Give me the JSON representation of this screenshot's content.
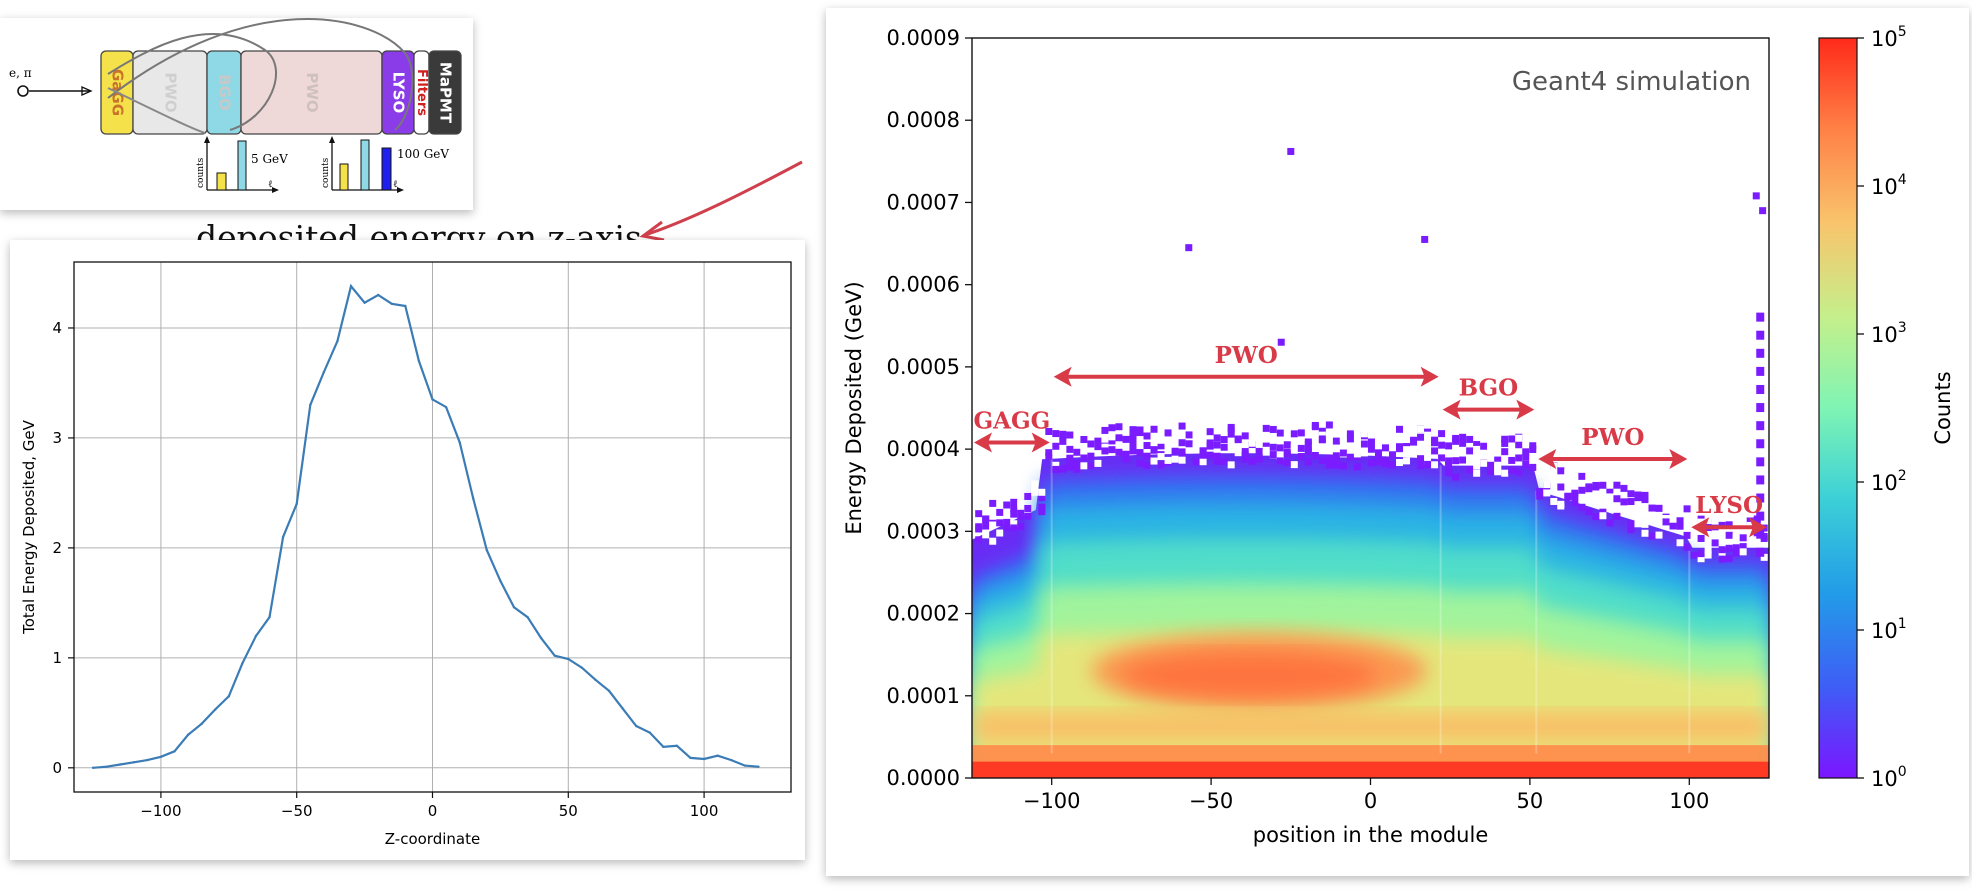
{
  "schematic": {
    "beam_label": "e, π",
    "blocks": [
      {
        "name": "gagg",
        "label": "GaGG",
        "color": "#f5e24a",
        "text_color": "#c9722a"
      },
      {
        "name": "pwo-1",
        "label": "PWO",
        "color": "#e8e8e8",
        "text_color": "#cfcfcf"
      },
      {
        "name": "bgo",
        "label": "BGO",
        "color": "#8fd8e6",
        "text_color": "#c8c8c8"
      },
      {
        "name": "pwo-2",
        "label": "PWO",
        "color": "#efd8d8",
        "text_color": "#cfc0c0"
      },
      {
        "name": "lyso",
        "label": "LYSO",
        "color": "#8a3ce8",
        "text_color": "#ffffff"
      },
      {
        "name": "filters",
        "label": "Filters",
        "color": "#ffffff",
        "text_color": "#d02020"
      },
      {
        "name": "mapmt",
        "label": "MaPMT",
        "color": "#3a3a3a",
        "text_color": "#ffffff"
      }
    ],
    "inset_5gev": {
      "axis_label": "counts",
      "energy_label": "5 GeV",
      "x_label": "ℓ"
    },
    "inset_100gev": {
      "axis_label": "counts",
      "energy_label": "100 GeV",
      "x_label": "ℓ"
    }
  },
  "caption": "deposited energy on z-axis",
  "line_chart": {
    "chart_data": {
      "type": "line",
      "xlabel": "Z-coordinate",
      "ylabel": "Total Energy Deposited, GeV",
      "xlim": [
        -132,
        132
      ],
      "ylim": [
        -0.22,
        4.6
      ],
      "xticks": [
        -100,
        -50,
        0,
        50,
        100
      ],
      "xtick_labels": [
        "−100",
        "−50",
        "0",
        "50",
        "100"
      ],
      "yticks": [
        0,
        1,
        2,
        3,
        4
      ],
      "ytick_labels": [
        "0",
        "1",
        "2",
        "3",
        "4"
      ],
      "grid": true,
      "line_color": "#3b7cb6",
      "x": [
        -125,
        -120,
        -115,
        -110,
        -105,
        -100,
        -95,
        -90,
        -85,
        -80,
        -75,
        -70,
        -65,
        -60,
        -55,
        -50,
        -45,
        -40,
        -35,
        -30,
        -25,
        -20,
        -15,
        -10,
        -5,
        0,
        5,
        10,
        15,
        20,
        25,
        30,
        35,
        40,
        45,
        50,
        55,
        60,
        65,
        70,
        75,
        80,
        85,
        90,
        95,
        100,
        105,
        110,
        115,
        120
      ],
      "y": [
        0.0,
        0.01,
        0.03,
        0.05,
        0.07,
        0.1,
        0.15,
        0.3,
        0.4,
        0.53,
        0.65,
        0.95,
        1.2,
        1.37,
        2.1,
        2.4,
        3.3,
        3.6,
        3.88,
        4.38,
        4.23,
        4.3,
        4.22,
        4.2,
        3.7,
        3.35,
        3.28,
        2.96,
        2.45,
        1.98,
        1.7,
        1.46,
        1.37,
        1.18,
        1.02,
        0.99,
        0.91,
        0.8,
        0.7,
        0.54,
        0.38,
        0.32,
        0.19,
        0.2,
        0.09,
        0.08,
        0.11,
        0.07,
        0.02,
        0.01
      ]
    }
  },
  "heatmap": {
    "chart_data": {
      "type": "heatmap",
      "title": "Geant4 simulation",
      "xlabel": "position in the module",
      "ylabel": "Energy Deposited (GeV)",
      "xlim": [
        -125,
        125
      ],
      "ylim": [
        0,
        0.0009
      ],
      "xticks": [
        -100,
        -50,
        0,
        50,
        100
      ],
      "xtick_labels": [
        "−100",
        "−50",
        "0",
        "50",
        "100"
      ],
      "yticks": [
        0.0,
        0.0001,
        0.0002,
        0.0003,
        0.0004,
        0.0005,
        0.0006,
        0.0007,
        0.0008,
        0.0009
      ],
      "ytick_labels": [
        "0.0000",
        "0.0001",
        "0.0002",
        "0.0003",
        "0.0004",
        "0.0005",
        "0.0006",
        "0.0007",
        "0.0008",
        "0.0009"
      ],
      "colorbar": {
        "label": "Counts",
        "scale": "log",
        "range": [
          1,
          100000
        ],
        "tick_bases": [
          "10",
          "10",
          "10",
          "10",
          "10",
          "10"
        ],
        "tick_exps": [
          "0",
          "1",
          "2",
          "3",
          "4",
          "5"
        ]
      },
      "regions": [
        {
          "label": "GAGG",
          "x0": -125,
          "x1": -100,
          "y": 0.000408
        },
        {
          "label": "PWO",
          "x0": -100,
          "x1": 22,
          "y": 0.000488
        },
        {
          "label": "BGO",
          "x0": 22,
          "x1": 52,
          "y": 0.000448
        },
        {
          "label": "PWO",
          "x0": 52,
          "x1": 100,
          "y": 0.000388
        },
        {
          "label": "LYSO",
          "x0": 100,
          "x1": 125,
          "y": 0.000305
        }
      ],
      "outlier_points": [
        {
          "x": -57,
          "y": 0.000645
        },
        {
          "x": -25,
          "y": 0.000762
        },
        {
          "x": 17,
          "y": 0.000655
        },
        {
          "x": -28,
          "y": 0.00053
        },
        {
          "x": 121,
          "y": 0.000708
        },
        {
          "x": 123,
          "y": 0.00069
        }
      ]
    }
  }
}
